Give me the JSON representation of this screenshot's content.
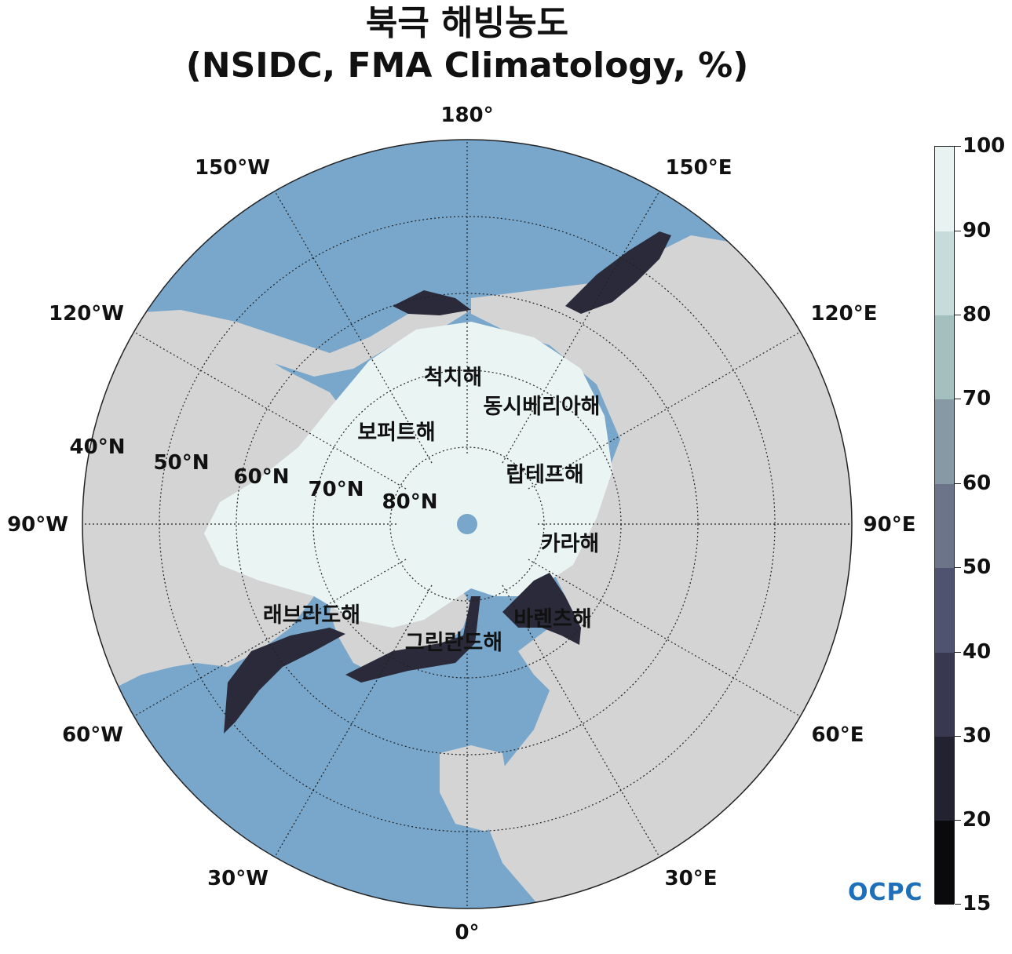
{
  "title": {
    "line1": "북극 해빙농도",
    "line2": "(NSIDC, FMA Climatology, %)"
  },
  "meridians": [
    "180°",
    "150°E",
    "120°E",
    "90°E",
    "60°E",
    "30°E",
    "0°",
    "30°W",
    "60°W",
    "90°W",
    "120°W",
    "150°W"
  ],
  "parallels": [
    "40°N",
    "50°N",
    "60°N",
    "70°N",
    "80°N"
  ],
  "regions": [
    "척치해",
    "동시베리아해",
    "보퍼트해",
    "랍테프해",
    "카라해",
    "바렌츠해",
    "래브라도해",
    "그린란드해"
  ],
  "colorbar": {
    "ticks": [
      "100",
      "90",
      "80",
      "70",
      "60",
      "50",
      "40",
      "30",
      "20",
      "15"
    ],
    "colors": [
      "#e8f2f1",
      "#c6dcda",
      "#a3c0bf",
      "#8899a6",
      "#6c7489",
      "#50536f",
      "#383850",
      "#222230",
      "#0a0a0c"
    ]
  },
  "colors": {
    "land": "#d4d4d4",
    "ocean": "#79a7cc",
    "ice": "#eaf4f3",
    "ice_edge": "#2a2a3a"
  },
  "logo": "OCPC"
}
